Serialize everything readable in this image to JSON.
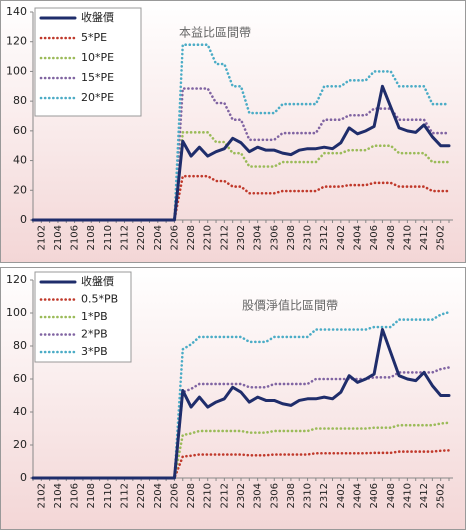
{
  "chart_data": [
    {
      "type": "line",
      "annotation": "本益比區間帶",
      "categories": [
        null,
        "2102",
        null,
        "2104",
        null,
        "2106",
        null,
        "2108",
        null,
        "2110",
        null,
        "2112",
        null,
        "2202",
        null,
        "2204",
        null,
        "2206",
        null,
        "2208",
        null,
        "2210",
        null,
        "2212",
        null,
        "2302",
        null,
        "2304",
        null,
        "2306",
        null,
        "2308",
        null,
        "2310",
        null,
        "2312",
        null,
        "2402",
        null,
        "2404",
        null,
        "2406",
        null,
        "2408",
        null,
        "2410",
        null,
        "2412",
        null,
        "2502",
        null
      ],
      "ylim": [
        0,
        140
      ],
      "yticks": [
        0,
        20,
        40,
        60,
        80,
        100,
        120,
        140
      ],
      "grid": false,
      "legend": "upper-left",
      "series": [
        {
          "name": "收盤價",
          "color": "#1f2d6b",
          "values": [
            0,
            0,
            0,
            0,
            0,
            0,
            0,
            0,
            0,
            0,
            0,
            0,
            0,
            0,
            0,
            0,
            0,
            0,
            53,
            43,
            49,
            43,
            46,
            48,
            55,
            52,
            46,
            49,
            47,
            47,
            45,
            44,
            47,
            48,
            48,
            49,
            48,
            52,
            62,
            58,
            60,
            63,
            90,
            76,
            62,
            60,
            59,
            64,
            56,
            50,
            50
          ]
        },
        {
          "name": "5*PE",
          "color": "#c0392b",
          "values": [
            0,
            0,
            0,
            0,
            0,
            0,
            0,
            0,
            0,
            0,
            0,
            0,
            0,
            0,
            0,
            0,
            0,
            0,
            29.5,
            29.5,
            29.5,
            29.5,
            26.25,
            26.25,
            22.5,
            22.5,
            18,
            18,
            18,
            18,
            19.5,
            19.5,
            19.5,
            19.5,
            19.5,
            22.5,
            22.5,
            22.5,
            23.5,
            23.5,
            23.5,
            25,
            25,
            25,
            22.5,
            22.5,
            22.5,
            22.5,
            19.5,
            19.5,
            19.5
          ]
        },
        {
          "name": "10*PE",
          "color": "#9bbb59",
          "values": [
            0,
            0,
            0,
            0,
            0,
            0,
            0,
            0,
            0,
            0,
            0,
            0,
            0,
            0,
            0,
            0,
            0,
            0,
            59,
            59,
            59,
            59,
            52.5,
            52.5,
            45,
            45,
            36,
            36,
            36,
            36,
            39,
            39,
            39,
            39,
            39,
            45,
            45,
            45,
            47,
            47,
            47,
            50,
            50,
            50,
            45,
            45,
            45,
            45,
            39,
            39,
            39
          ]
        },
        {
          "name": "15*PE",
          "color": "#8064a2",
          "values": [
            0,
            0,
            0,
            0,
            0,
            0,
            0,
            0,
            0,
            0,
            0,
            0,
            0,
            0,
            0,
            0,
            0,
            0,
            88.5,
            88.5,
            88.5,
            88.5,
            78.75,
            78.75,
            67.5,
            67.5,
            54,
            54,
            54,
            54,
            58.5,
            58.5,
            58.5,
            58.5,
            58.5,
            67.5,
            67.5,
            67.5,
            70.5,
            70.5,
            70.5,
            75,
            75,
            75,
            67.5,
            67.5,
            67.5,
            67.5,
            58.5,
            58.5,
            58.5
          ]
        },
        {
          "name": "20*PE",
          "color": "#4bacc6",
          "values": [
            0,
            0,
            0,
            0,
            0,
            0,
            0,
            0,
            0,
            0,
            0,
            0,
            0,
            0,
            0,
            0,
            0,
            0,
            118,
            118,
            118,
            118,
            105,
            105,
            90,
            90,
            72,
            72,
            72,
            72,
            78,
            78,
            78,
            78,
            78,
            90,
            90,
            90,
            94,
            94,
            94,
            100,
            100,
            100,
            90,
            90,
            90,
            90,
            78,
            78,
            78
          ]
        }
      ]
    },
    {
      "type": "line",
      "annotation": "股價淨值比區間帶",
      "categories": [
        null,
        "2102",
        null,
        "2104",
        null,
        "2106",
        null,
        "2108",
        null,
        "2110",
        null,
        "2112",
        null,
        "2202",
        null,
        "2204",
        null,
        "2206",
        null,
        "2208",
        null,
        "2210",
        null,
        "2212",
        null,
        "2302",
        null,
        "2304",
        null,
        "2306",
        null,
        "2308",
        null,
        "2310",
        null,
        "2312",
        null,
        "2402",
        null,
        "2404",
        null,
        "2406",
        null,
        "2408",
        null,
        "2410",
        null,
        "2412",
        null,
        "2502",
        null
      ],
      "ylim": [
        0,
        120
      ],
      "yticks": [
        0,
        20,
        40,
        60,
        80,
        100,
        120
      ],
      "grid": false,
      "legend": "upper-left",
      "series": [
        {
          "name": "收盤價",
          "color": "#1f2d6b",
          "values": [
            0,
            0,
            0,
            0,
            0,
            0,
            0,
            0,
            0,
            0,
            0,
            0,
            0,
            0,
            0,
            0,
            0,
            0,
            53,
            43,
            49,
            43,
            46,
            48,
            55,
            52,
            46,
            49,
            47,
            47,
            45,
            44,
            47,
            48,
            48,
            49,
            48,
            52,
            62,
            58,
            60,
            63,
            90,
            76,
            62,
            60,
            59,
            64,
            56,
            50,
            50
          ]
        },
        {
          "name": "0.5*PB",
          "color": "#c0392b",
          "values": [
            0,
            0,
            0,
            0,
            0,
            0,
            0,
            0,
            0,
            0,
            0,
            0,
            0,
            0,
            0,
            0,
            0,
            0,
            13,
            13.5,
            14.25,
            14.25,
            14.25,
            14.25,
            14.25,
            14.25,
            13.75,
            13.75,
            13.75,
            14.25,
            14.25,
            14.25,
            14.25,
            14.25,
            15,
            15,
            15,
            15,
            15,
            15,
            15,
            15.25,
            15.25,
            15.25,
            16,
            16,
            16,
            16,
            16,
            16.5,
            16.75
          ]
        },
        {
          "name": "1*PB",
          "color": "#9bbb59",
          "values": [
            0,
            0,
            0,
            0,
            0,
            0,
            0,
            0,
            0,
            0,
            0,
            0,
            0,
            0,
            0,
            0,
            0,
            0,
            26,
            27,
            28.5,
            28.5,
            28.5,
            28.5,
            28.5,
            28.5,
            27.5,
            27.5,
            27.5,
            28.5,
            28.5,
            28.5,
            28.5,
            28.5,
            30,
            30,
            30,
            30,
            30,
            30,
            30,
            30.5,
            30.5,
            30.5,
            32,
            32,
            32,
            32,
            32,
            33,
            33.5
          ]
        },
        {
          "name": "2*PB",
          "color": "#8064a2",
          "values": [
            0,
            0,
            0,
            0,
            0,
            0,
            0,
            0,
            0,
            0,
            0,
            0,
            0,
            0,
            0,
            0,
            0,
            0,
            52,
            54,
            57,
            57,
            57,
            57,
            57,
            57,
            55,
            55,
            55,
            57,
            57,
            57,
            57,
            57,
            60,
            60,
            60,
            60,
            60,
            60,
            60,
            61,
            61,
            61,
            64,
            64,
            64,
            64,
            64,
            66,
            67
          ]
        },
        {
          "name": "3*PB",
          "color": "#4bacc6",
          "values": [
            0,
            0,
            0,
            0,
            0,
            0,
            0,
            0,
            0,
            0,
            0,
            0,
            0,
            0,
            0,
            0,
            0,
            0,
            78,
            81,
            85.5,
            85.5,
            85.5,
            85.5,
            85.5,
            85.5,
            82.5,
            82.5,
            82.5,
            85.5,
            85.5,
            85.5,
            85.5,
            85.5,
            90,
            90,
            90,
            90,
            90,
            90,
            90,
            91.5,
            91.5,
            91.5,
            96,
            96,
            96,
            96,
            96,
            99,
            100.5
          ]
        }
      ]
    }
  ]
}
